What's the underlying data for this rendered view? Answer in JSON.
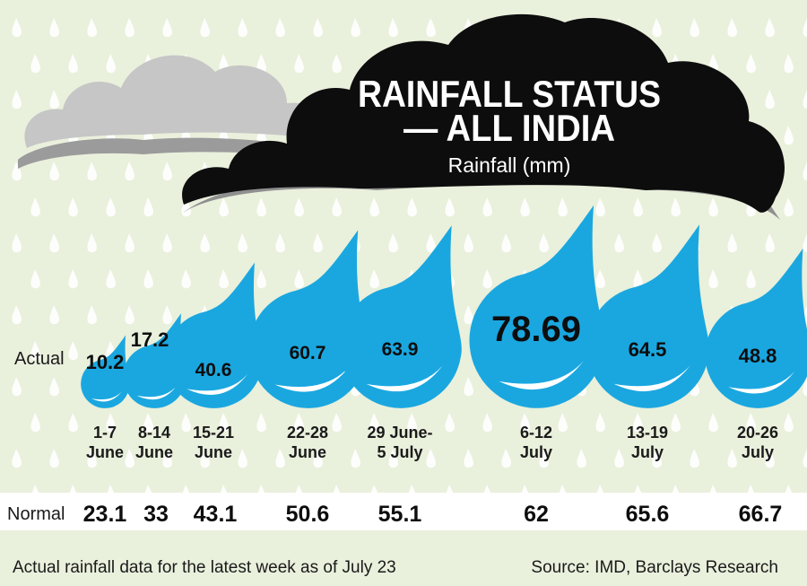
{
  "chart_data": {
    "type": "bar",
    "title_line1": "RAINFALL STATUS",
    "title_line2": "— ALL INDIA",
    "subtitle": "Rainfall (mm)",
    "categories": [
      [
        "1-7",
        "June"
      ],
      [
        "8-14",
        "June"
      ],
      [
        "15-21",
        "June"
      ],
      [
        "22-28",
        "June"
      ],
      [
        "29 June-",
        "5 July"
      ],
      [
        "6-12",
        "July"
      ],
      [
        "13-19",
        "July"
      ],
      [
        "20-26",
        "July"
      ]
    ],
    "series": [
      {
        "name": "Actual",
        "values": [
          10.2,
          17.2,
          40.6,
          60.7,
          63.9,
          78.69,
          64.5,
          48.8
        ]
      },
      {
        "name": "Normal",
        "values": [
          23.1,
          33,
          43.1,
          50.6,
          55.1,
          62,
          65.6,
          66.7
        ]
      }
    ],
    "actual_labels": [
      "10.2",
      "17.2",
      "40.6",
      "60.7",
      "63.9",
      "78.69",
      "64.5",
      "48.8"
    ],
    "normal_labels": [
      "23.1",
      "33",
      "43.1",
      "50.6",
      "55.1",
      "62",
      "65.6",
      "66.7"
    ],
    "row_label_actual": "Actual",
    "row_label_normal": "Normal",
    "ylim": [
      0,
      80
    ]
  },
  "footer": {
    "note": "Actual rainfall data for the latest week as of July 23",
    "source": "Source: IMD, Barclays Research"
  },
  "colors": {
    "background": "#e9f0dc",
    "drop": "#1aa7e0",
    "drop_highlight": "#ffffff",
    "cloud_dark": "#0d0d0d",
    "cloud_light": "#c3c3c3",
    "rain": "#ffffff"
  }
}
